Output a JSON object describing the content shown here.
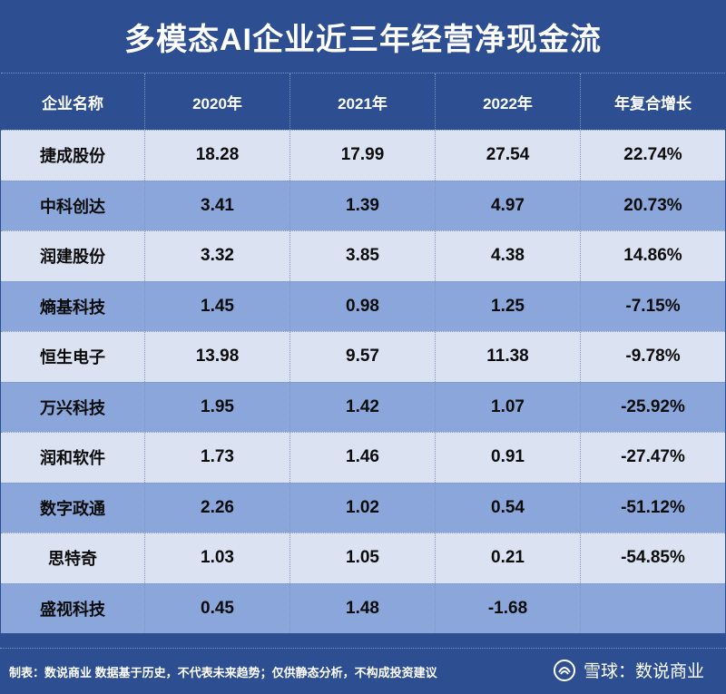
{
  "title": "多模态AI企业近三年经营净现金流",
  "headers": [
    "企业名称",
    "2020年",
    "2021年",
    "2022年",
    "年复合增长"
  ],
  "rows": [
    [
      "捷成股份",
      "18.28",
      "17.99",
      "27.54",
      "22.74%"
    ],
    [
      "中科创达",
      "3.41",
      "1.39",
      "4.97",
      "20.73%"
    ],
    [
      "润建股份",
      "3.32",
      "3.85",
      "4.38",
      "14.86%"
    ],
    [
      "熵基科技",
      "1.45",
      "0.98",
      "1.25",
      "-7.15%"
    ],
    [
      "恒生电子",
      "13.98",
      "9.57",
      "11.38",
      "-9.78%"
    ],
    [
      "万兴科技",
      "1.95",
      "1.42",
      "1.07",
      "-25.92%"
    ],
    [
      "润和软件",
      "1.73",
      "1.46",
      "0.91",
      "-27.47%"
    ],
    [
      "数字政通",
      "2.26",
      "1.02",
      "0.54",
      "-51.12%"
    ],
    [
      "思特奇",
      "1.03",
      "1.05",
      "0.21",
      "-54.85%"
    ],
    [
      "盛视科技",
      "0.45",
      "1.48",
      "-1.68",
      ""
    ]
  ],
  "footer": {
    "note": "制表：数说商业 数据基于历史，不代表未来趋势；仅供静态分析，不构成投资建议",
    "brand": "雪球：数说商业"
  },
  "colors": {
    "background": "#2d4f92",
    "row_light": "#dbe2f2",
    "row_dark": "#8aa6db"
  }
}
